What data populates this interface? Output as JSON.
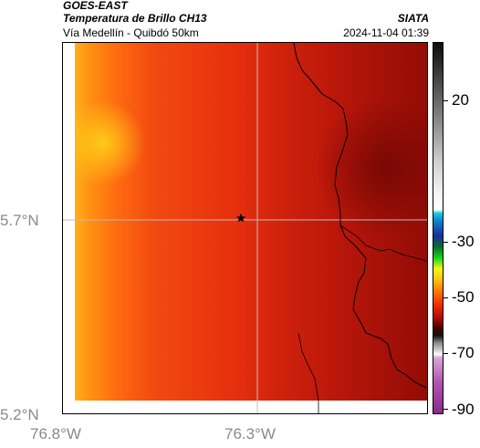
{
  "header": {
    "title": "GOES-EAST",
    "subtitle": "Temperatura de Brillo CH13",
    "brand": "SIATA",
    "location": "Vía Medellín - Quibdó 50km",
    "datetime": "2024-11-04 01:39"
  },
  "axes": {
    "lat_labels": [
      "5.7°N",
      "5.2°N"
    ],
    "lon_labels": [
      "76.8°W",
      "76.3°W"
    ]
  },
  "colorbar": {
    "ticks": [
      "20",
      "-30",
      "-50",
      "-70",
      "-90"
    ]
  },
  "marker": {
    "icon": "star-icon",
    "color": "#000000"
  },
  "colors": {
    "warm_edge": "#ff9a14",
    "mid": "#f03a12",
    "cold": "#9c0c06",
    "boundary": "#000000"
  }
}
